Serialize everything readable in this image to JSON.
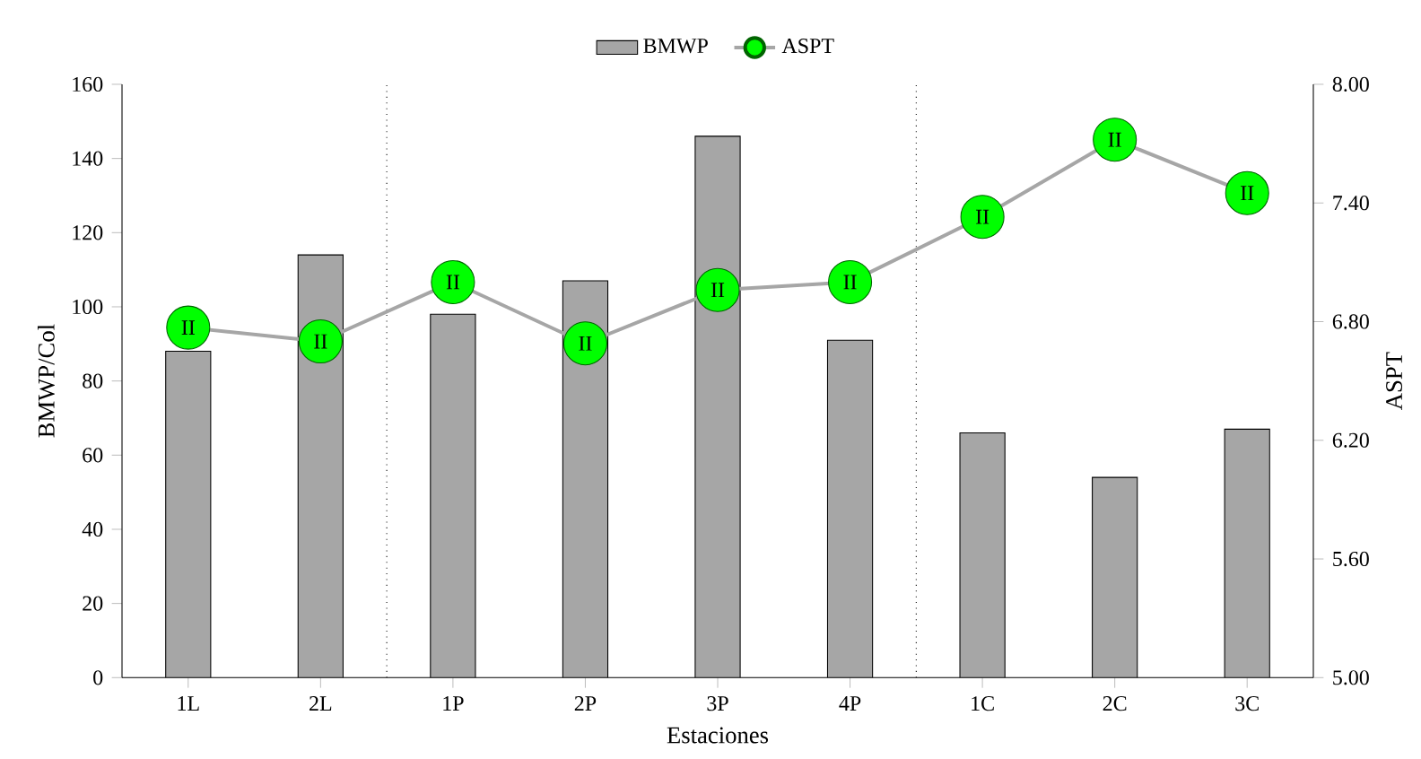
{
  "chart_data": {
    "type": "bar",
    "xlabel": "Estaciones",
    "ylabel": "BMWP/Col",
    "y2label": "ASPT",
    "categories": [
      "1L",
      "2L",
      "1P",
      "2P",
      "3P",
      "4P",
      "1C",
      "2C",
      "3C"
    ],
    "series": [
      {
        "name": "BMWP",
        "color": "#a6a6a6",
        "values": [
          88,
          114,
          98,
          107,
          146,
          91,
          66,
          54,
          67
        ]
      },
      {
        "name": "ASPT",
        "type": "line",
        "axis": "y2",
        "color": "#a6a6a6",
        "colors": [
          "#00ff00",
          "#00ff00",
          "#00ff00",
          "#00ff00",
          "#00ff00",
          "#00ff00",
          "#00ff00",
          "#00ff00",
          "#00ff00"
        ],
        "values": [
          6.77,
          6.7,
          7.0,
          6.69,
          6.96,
          7.0,
          7.33,
          7.72,
          7.45
        ],
        "value_labels": [
          "II",
          "II",
          "II",
          "II",
          "II",
          "II",
          "II",
          "II",
          "II"
        ]
      }
    ],
    "ylim": [
      0,
      160
    ],
    "yticks": [
      0,
      20,
      40,
      60,
      80,
      100,
      120,
      140,
      160
    ],
    "y2lim": [
      5,
      8
    ],
    "y2ticks": [
      {
        "value": 5,
        "label": "5.00"
      },
      {
        "value": 5.6,
        "label": "5.60"
      },
      {
        "value": 6.2,
        "label": "6.20"
      },
      {
        "value": 6.8,
        "label": "6.80"
      },
      {
        "value": 7.4,
        "label": "7.40"
      },
      {
        "value": 8,
        "label": "8.00"
      }
    ],
    "legend": "top",
    "marker": "circle",
    "grid": false
  }
}
